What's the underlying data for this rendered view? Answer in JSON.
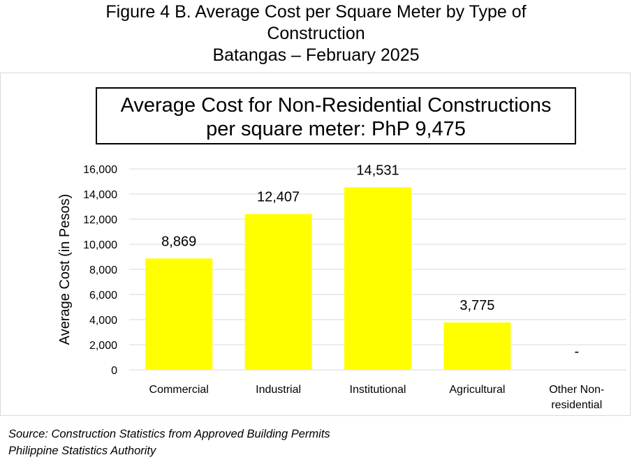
{
  "figure": {
    "title_line1": "Figure 4 B. Average Cost per Square Meter by Type of",
    "title_line2": "Construction",
    "title_line3": "Batangas – February 2025"
  },
  "callout": {
    "line1": "Average Cost for Non-Residential Constructions",
    "line2": "per square meter: PhP 9,475"
  },
  "source": {
    "line1": "Source: Construction Statistics from Approved Building Permits",
    "line2": "Philippine Statistics Authority"
  },
  "chart_data": {
    "type": "bar",
    "categories": [
      "Commercial",
      "Industrial",
      "Institutional",
      "Agricultural",
      "Other Non-residential"
    ],
    "category_label_lines": [
      [
        "Commercial"
      ],
      [
        "Industrial"
      ],
      [
        "Institutional"
      ],
      [
        "Agricultural"
      ],
      [
        "Other Non-",
        "residential"
      ]
    ],
    "values": [
      8869,
      12407,
      14531,
      3775,
      null
    ],
    "data_labels": [
      "8,869",
      "12,407",
      "14,531",
      "3,775",
      "-"
    ],
    "ylabel": "Average Cost (in Pesos)",
    "ylim": [
      0,
      16000
    ],
    "yticks": [
      0,
      2000,
      4000,
      6000,
      8000,
      10000,
      12000,
      14000,
      16000
    ],
    "ytick_labels": [
      "0",
      "2,000",
      "4,000",
      "6,000",
      "8,000",
      "10,000",
      "12,000",
      "14,000",
      "16,000"
    ],
    "grid": true,
    "bar_color": "#ffff00",
    "grid_color": "#d9d9d9"
  }
}
